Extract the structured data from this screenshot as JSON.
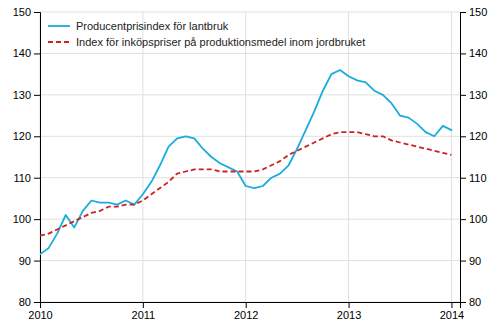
{
  "chart_data": {
    "type": "line",
    "x": [
      2010,
      2010.0833333333333,
      2010.1666666666667,
      2010.25,
      2010.3333333333333,
      2010.4166666666667,
      2010.5,
      2010.5833333333333,
      2010.6666666666667,
      2010.75,
      2010.8333333333333,
      2010.9166666666667,
      2011,
      2011.0833333333333,
      2011.1666666666667,
      2011.25,
      2011.3333333333333,
      2011.4166666666667,
      2011.5,
      2011.5833333333333,
      2011.6666666666667,
      2011.75,
      2011.8333333333333,
      2011.9166666666667,
      2012,
      2012.0833333333333,
      2012.1666666666667,
      2012.25,
      2012.3333333333333,
      2012.4166666666667,
      2012.5,
      2012.5833333333333,
      2012.6666666666667,
      2012.75,
      2012.8333333333333,
      2012.9166666666667,
      2013,
      2013.0833333333333,
      2013.1666666666667,
      2013.25,
      2013.3333333333333,
      2013.4166666666667,
      2013.5,
      2013.5833333333333,
      2013.6666666666667,
      2013.75,
      2013.8333333333333,
      2013.9166666666667,
      2014
    ],
    "series": [
      {
        "name": "Producentprisindex för lantbruk",
        "color": "#1AACDC",
        "line_style": "solid",
        "values": [
          91.5,
          93.0,
          96.5,
          101.0,
          98.0,
          102.0,
          104.5,
          104.0,
          104.0,
          103.5,
          104.5,
          103.5,
          106.0,
          109.0,
          113.0,
          117.5,
          119.5,
          120.0,
          119.5,
          117.0,
          115.0,
          113.5,
          112.5,
          111.5,
          108.0,
          107.5,
          108.0,
          110.0,
          111.0,
          113.0,
          117.0,
          121.5,
          126.0,
          131.0,
          135.0,
          136.0,
          134.5,
          133.5,
          133.0,
          131.0,
          130.0,
          128.0,
          125.0,
          124.5,
          123.0,
          121.0,
          120.0,
          122.5,
          121.5
        ]
      },
      {
        "name": "Index för inköpspriser på produktionsmedel inom jordbruket",
        "color": "#CC2222",
        "line_style": "dashed",
        "axis": "y2",
        "values": [
          96.0,
          96.5,
          97.5,
          98.5,
          99.5,
          100.5,
          101.5,
          102.0,
          103.0,
          103.0,
          103.5,
          103.5,
          104.5,
          106.0,
          107.5,
          109.0,
          111.0,
          111.5,
          112.0,
          112.0,
          112.0,
          111.5,
          111.5,
          111.5,
          111.5,
          111.5,
          112.0,
          113.0,
          114.0,
          115.5,
          116.5,
          117.5,
          118.5,
          119.5,
          120.5,
          121.0,
          121.0,
          121.0,
          120.5,
          120.0,
          120.0,
          119.0,
          118.5,
          118.0,
          117.5,
          117.0,
          116.5,
          116.0,
          115.5
        ]
      }
    ],
    "xlim": [
      2010,
      2014.0833333333333
    ],
    "xticks": [
      2010,
      2011,
      2012,
      2013,
      2014
    ],
    "ylim": [
      80,
      150
    ],
    "yticks": [
      80,
      90,
      100,
      110,
      120,
      130,
      140,
      150
    ],
    "y2lim": [
      80,
      150
    ],
    "y2ticks": [
      80,
      90,
      100,
      110,
      120,
      130,
      140,
      150
    ],
    "grid": true,
    "legend": "top-left"
  }
}
